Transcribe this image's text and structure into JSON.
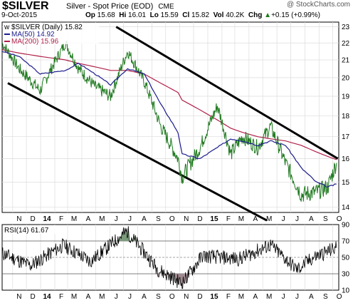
{
  "header": {
    "symbol": "$SILVER",
    "description": "Silver - Spot Price (EOD)",
    "exchange": "CME",
    "watermark": "@ StockCharts.com",
    "date": "9-Oct-2015",
    "open_label": "Op",
    "open": "15.68",
    "high_label": "Hi",
    "high": "16.01",
    "low_label": "Lo",
    "low": "15.59",
    "close_label": "Cl",
    "close": "15.82",
    "vol_label": "Vol",
    "volume": "40.2K",
    "chg_label": "Chg",
    "change": "+0.15 (+0.99%)",
    "change_indicator": "up-triangle"
  },
  "price_panel": {
    "legend_title": "$SILVER (Daily) 15.82",
    "legend_ma50": "MA(50) 14.92",
    "legend_ma200": "MA(200) 15.96",
    "ma50_color": "#1c1c8c",
    "ma200_color": "#b0204a",
    "price_color": "#1f7a1f",
    "price_axis_ticks": [
      "23",
      "22",
      "21",
      "20",
      "19",
      "18",
      "17",
      "16",
      "15",
      "14"
    ]
  },
  "x_axis": {
    "labels": [
      "N",
      "D",
      "14",
      "F",
      "M",
      "A",
      "M",
      "J",
      "J",
      "A",
      "S",
      "O",
      "N",
      "D",
      "15",
      "F",
      "M",
      "A",
      "M",
      "J",
      "J",
      "A",
      "S",
      "O"
    ]
  },
  "rsi_panel": {
    "legend": "RSI(14) 61.67",
    "axis_ticks": [
      "90",
      "70",
      "50",
      "30",
      "10"
    ]
  },
  "chart_data": [
    {
      "type": "line",
      "title": "$SILVER (Daily) 15.82",
      "x": [
        "2013-10-09",
        "2013-11-15",
        "2013-12-31",
        "2014-02-24",
        "2014-03-25",
        "2014-04-30",
        "2014-06-03",
        "2014-07-10",
        "2014-08-15",
        "2014-09-20",
        "2014-10-28",
        "2014-11-06",
        "2014-12-15",
        "2015-01-22",
        "2015-02-20",
        "2015-03-18",
        "2015-04-20",
        "2015-05-18",
        "2015-06-20",
        "2015-07-24",
        "2015-08-26",
        "2015-09-20",
        "2015-10-09"
      ],
      "series": [
        {
          "name": "$SILVER",
          "values": [
            22.0,
            20.5,
            19.3,
            22.0,
            20.5,
            19.5,
            19.0,
            21.5,
            19.8,
            17.5,
            16.0,
            15.2,
            16.5,
            18.5,
            16.2,
            17.0,
            16.5,
            17.5,
            15.8,
            14.5,
            14.6,
            14.8,
            15.82
          ]
        },
        {
          "name": "MA(50)",
          "values": [
            21.5,
            21.2,
            20.2,
            20.4,
            20.8,
            20.2,
            19.6,
            20.5,
            20.2,
            18.6,
            17.2,
            16.2,
            16.0,
            16.5,
            16.9,
            16.8,
            16.6,
            16.8,
            16.6,
            15.6,
            15.0,
            14.8,
            14.92
          ]
        },
        {
          "name": "MA(200)",
          "values": [
            21.6,
            21.4,
            21.2,
            21.0,
            20.8,
            20.6,
            20.4,
            20.4,
            20.2,
            19.7,
            19.2,
            18.8,
            18.3,
            17.8,
            17.4,
            17.2,
            17.0,
            16.9,
            16.8,
            16.6,
            16.3,
            16.1,
            15.96
          ]
        }
      ],
      "trendlines": [
        {
          "name": "upper-channel",
          "from": [
            "2014-06-15",
            23.0
          ],
          "to": [
            "2015-10-12",
            16.0
          ]
        },
        {
          "name": "lower-channel",
          "from": [
            "2013-10-09",
            19.7
          ],
          "to": [
            "2015-05-10",
            13.5
          ]
        }
      ],
      "ylim": [
        13.8,
        23.3
      ],
      "y_scale": "log",
      "grid": true,
      "legend_position": "top-left"
    },
    {
      "type": "line",
      "title": "RSI(14) 61.67",
      "x": [
        "2013-10-09",
        "2013-12-10",
        "2014-02-20",
        "2014-04-20",
        "2014-07-08",
        "2014-09-15",
        "2014-11-06",
        "2014-12-20",
        "2015-03-10",
        "2015-05-18",
        "2015-07-15",
        "2015-08-20",
        "2015-10-09"
      ],
      "series": [
        {
          "name": "RSI(14)",
          "values": [
            55,
            40,
            65,
            45,
            82,
            35,
            18,
            52,
            48,
            65,
            35,
            50,
            61.67
          ]
        }
      ],
      "reference_lines": [
        70,
        50,
        30
      ],
      "ylim": [
        10,
        90
      ],
      "grid": true,
      "legend_position": "top-left"
    }
  ]
}
